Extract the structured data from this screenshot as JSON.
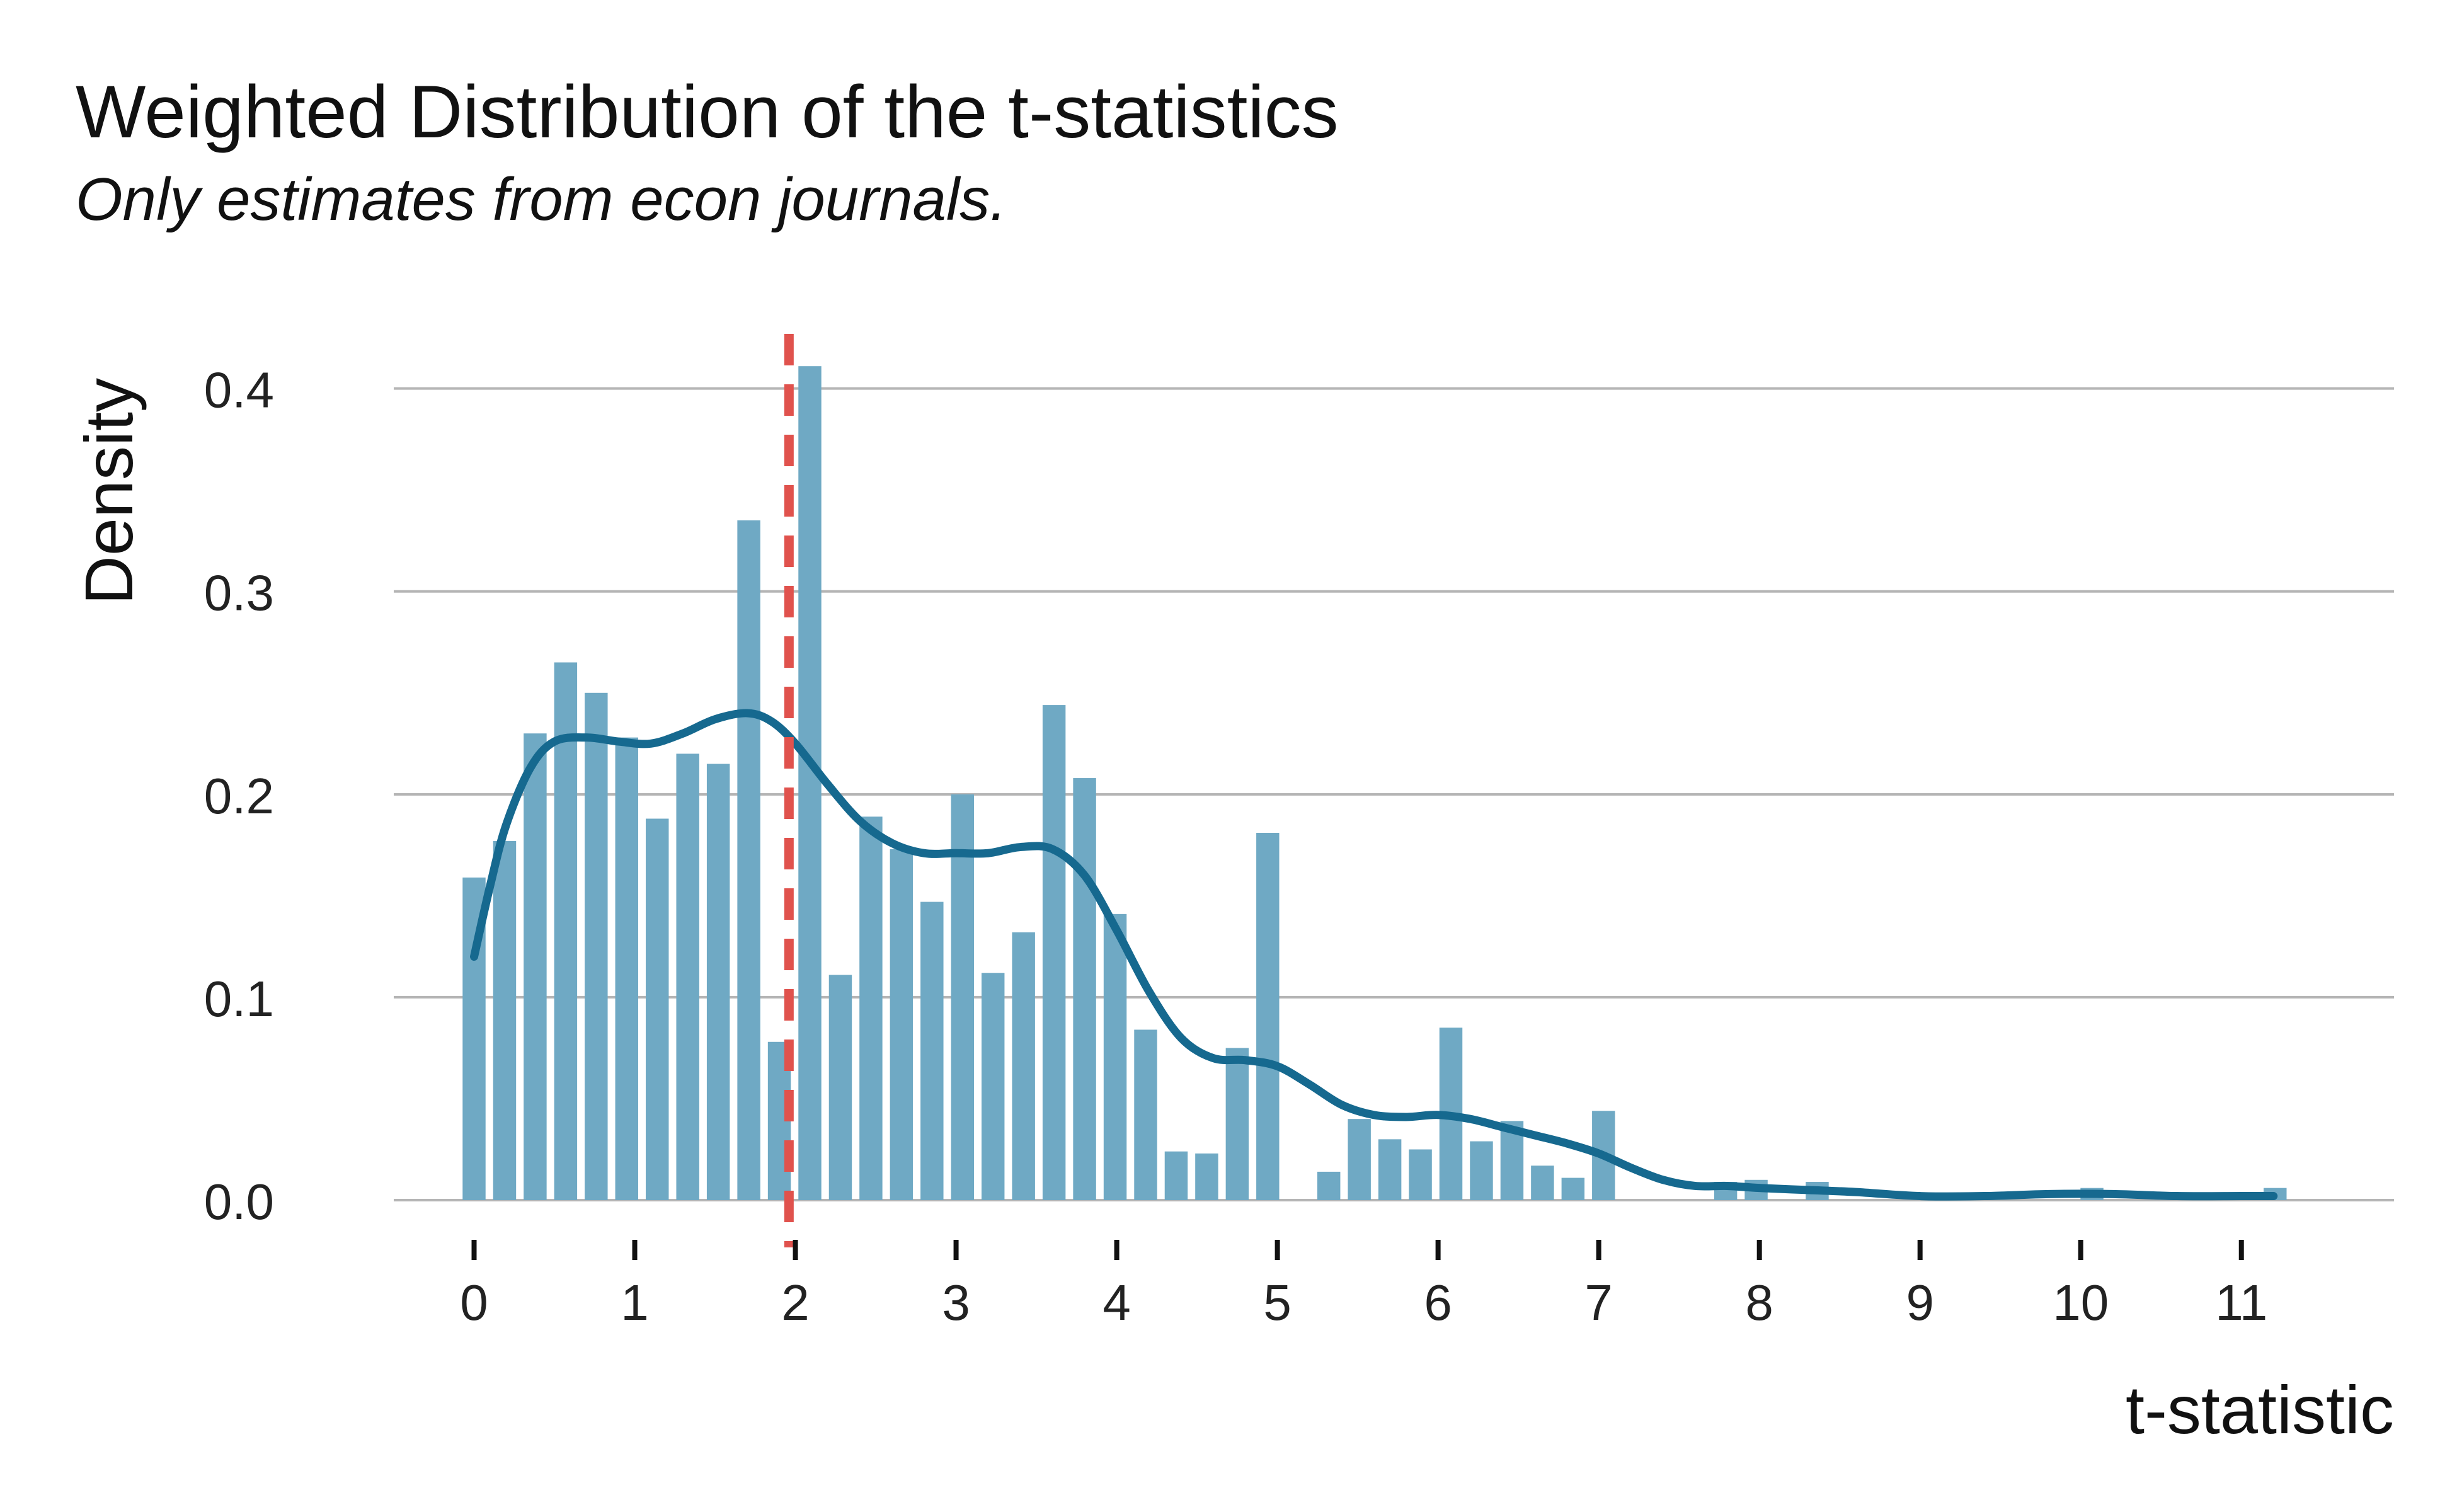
{
  "chart_data": {
    "type": "bar",
    "title": "Weighted Distribution of the t-statistics",
    "subtitle": "Only estimates from econ journals.",
    "xlabel": "t-statistic",
    "ylabel": "Density",
    "xlim": [
      -0.5,
      11.95
    ],
    "ylim": [
      0,
      0.43
    ],
    "x_ticks": [
      0,
      1,
      2,
      3,
      4,
      5,
      6,
      7,
      8,
      9,
      10,
      11
    ],
    "y_ticks": [
      0.0,
      0.1,
      0.2,
      0.3,
      0.4
    ],
    "y_tick_labels": [
      "0.0",
      "0.1",
      "0.2",
      "0.3",
      "0.4"
    ],
    "grid": "horizontal",
    "bin_width": 0.19,
    "bar_color": "#6fa9c4",
    "density_color": "#16698f",
    "reference_color": "#e0524d",
    "bars": {
      "x": [
        0.0,
        0.19,
        0.38,
        0.57,
        0.76,
        0.95,
        1.14,
        1.33,
        1.52,
        1.71,
        1.9,
        2.09,
        2.28,
        2.47,
        2.66,
        2.85,
        3.04,
        3.23,
        3.42,
        3.61,
        3.8,
        3.99,
        4.18,
        4.37,
        4.56,
        4.75,
        4.94,
        5.13,
        5.32,
        5.51,
        5.7,
        5.89,
        6.08,
        6.27,
        6.46,
        6.65,
        6.84,
        7.03,
        7.22,
        7.41,
        7.6,
        7.79,
        7.98,
        8.17,
        8.36,
        8.55,
        8.74,
        8.93,
        9.12,
        9.31,
        9.5,
        9.69,
        9.88,
        10.07,
        10.26,
        10.45,
        10.64,
        10.83,
        11.02,
        11.21
      ],
      "values": [
        0.159,
        0.177,
        0.23,
        0.265,
        0.25,
        0.228,
        0.188,
        0.22,
        0.215,
        0.335,
        0.078,
        0.411,
        0.111,
        0.189,
        0.173,
        0.147,
        0.2,
        0.112,
        0.132,
        0.244,
        0.208,
        0.141,
        0.084,
        0.024,
        0.023,
        0.075,
        0.181,
        0.0,
        0.014,
        0.04,
        0.03,
        0.025,
        0.085,
        0.029,
        0.039,
        0.017,
        0.011,
        0.044,
        0.0,
        0.0,
        0.0,
        0.009,
        0.01,
        0.0,
        0.009,
        0.0,
        0.0,
        0.0,
        0.0,
        0.0,
        0.0,
        0.0,
        0.0,
        0.006,
        0.0,
        0.0,
        0.0,
        0.0,
        0.0,
        0.006
      ]
    },
    "density_curve": {
      "x": [
        0.0,
        0.1,
        0.2,
        0.35,
        0.5,
        0.7,
        0.9,
        1.1,
        1.3,
        1.5,
        1.7,
        1.85,
        2.0,
        2.2,
        2.4,
        2.6,
        2.8,
        3.0,
        3.2,
        3.4,
        3.6,
        3.8,
        4.0,
        4.2,
        4.4,
        4.6,
        4.8,
        5.0,
        5.2,
        5.4,
        5.6,
        5.8,
        6.0,
        6.2,
        6.4,
        6.6,
        6.8,
        7.0,
        7.2,
        7.4,
        7.6,
        7.8,
        8.0,
        8.3,
        8.6,
        9.0,
        9.4,
        9.8,
        10.2,
        10.6,
        11.0,
        11.2
      ],
      "y": [
        0.12,
        0.155,
        0.185,
        0.213,
        0.226,
        0.228,
        0.226,
        0.225,
        0.23,
        0.237,
        0.24,
        0.236,
        0.225,
        0.205,
        0.187,
        0.176,
        0.171,
        0.171,
        0.171,
        0.174,
        0.173,
        0.16,
        0.133,
        0.103,
        0.08,
        0.07,
        0.069,
        0.066,
        0.057,
        0.047,
        0.042,
        0.041,
        0.042,
        0.04,
        0.036,
        0.032,
        0.028,
        0.023,
        0.016,
        0.01,
        0.007,
        0.007,
        0.006,
        0.005,
        0.004,
        0.002,
        0.002,
        0.003,
        0.003,
        0.002,
        0.002,
        0.002
      ]
    },
    "reference_line": {
      "x": 1.96
    }
  }
}
